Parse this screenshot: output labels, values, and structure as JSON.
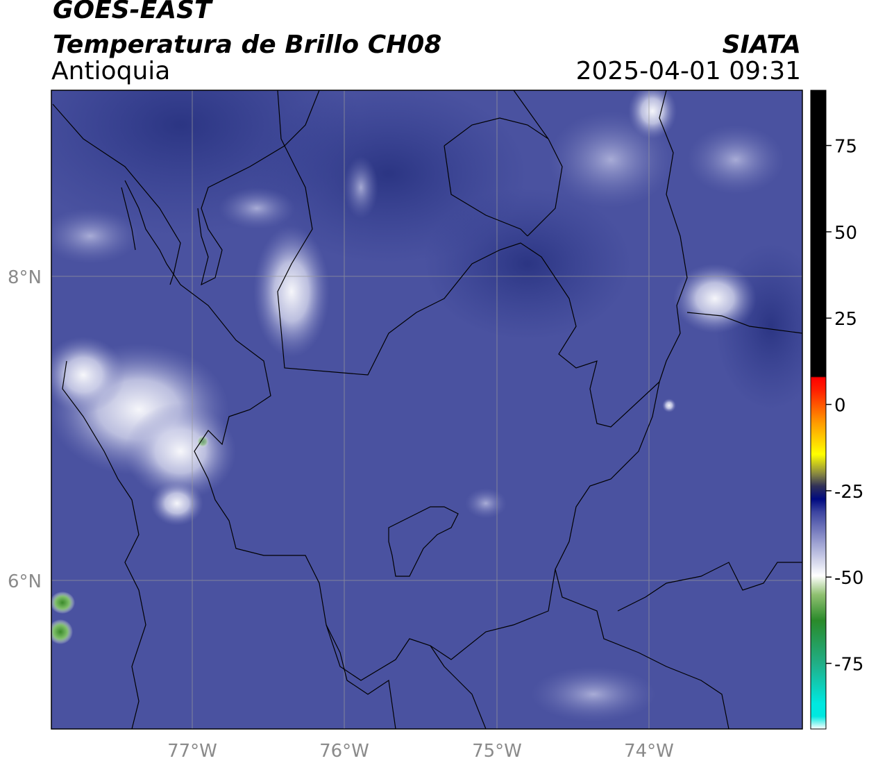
{
  "header": {
    "satellite": "GOES-EAST",
    "product": "Temperatura de Brillo CH08",
    "organization": "SIATA",
    "region": "Antioquia",
    "datetime": "2025-04-01 09:31"
  },
  "map": {
    "lat_labels": [
      "8°N",
      "6°N"
    ],
    "lon_labels": [
      "77°W",
      "76°W",
      "75°W",
      "74°W"
    ],
    "colors": {
      "background_field": "#4a52a0",
      "frame": "#000000",
      "gridline": "#9a9a9a"
    }
  },
  "colorbar": {
    "ticks": [
      "75",
      "50",
      "25",
      "0",
      "-25",
      "-50",
      "-75"
    ],
    "tick_values": [
      75,
      50,
      25,
      0,
      -25,
      -50,
      -75
    ],
    "range": [
      -94,
      91
    ]
  }
}
